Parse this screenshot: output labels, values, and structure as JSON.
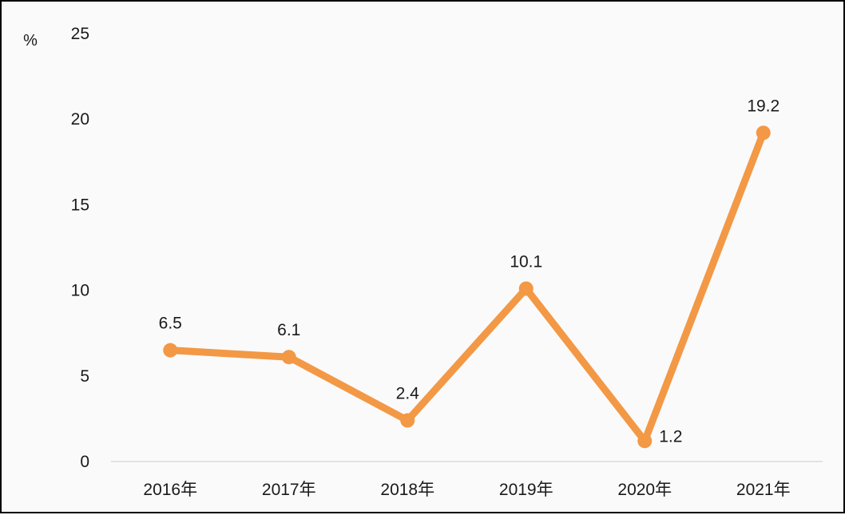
{
  "chart_data": {
    "type": "line",
    "title": "",
    "xlabel": "",
    "ylabel": "%",
    "categories": [
      "2016年",
      "2017年",
      "2018年",
      "2019年",
      "2020年",
      "2021年"
    ],
    "series": [
      {
        "values": [
          6.5,
          6.1,
          2.4,
          10.1,
          1.2,
          19.2
        ],
        "color": "#f39845"
      }
    ],
    "data_labels": [
      "6.5",
      "6.1",
      "2.4",
      "10.1",
      "1.2",
      "19.2"
    ],
    "yticks": [
      "0",
      "5",
      "10",
      "15",
      "20",
      "25"
    ],
    "ylim": [
      0,
      25
    ],
    "grid": false,
    "legend": "none"
  }
}
